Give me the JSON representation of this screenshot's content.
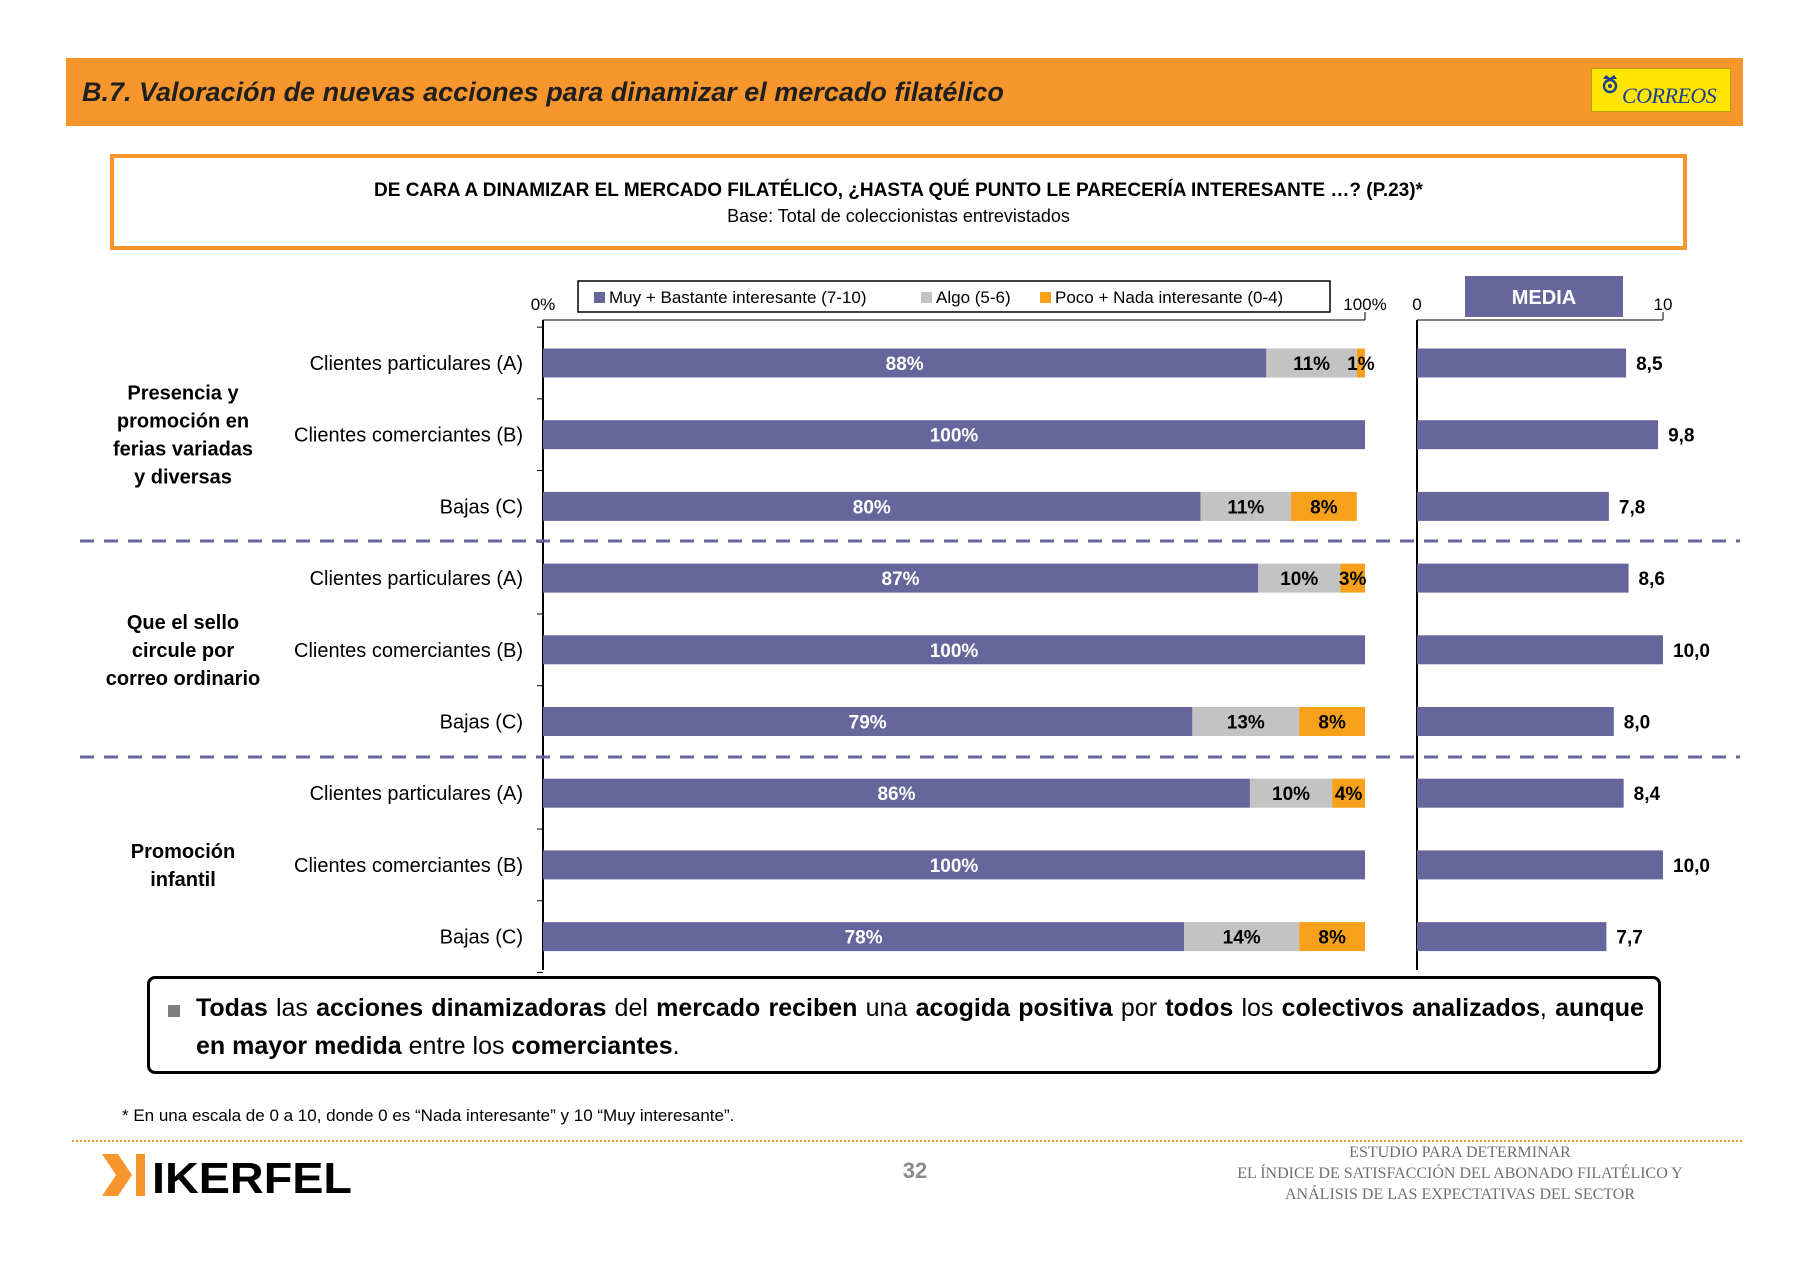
{
  "header": {
    "title": "B.7. Valoración de nuevas acciones para dinamizar el mercado filatélico",
    "logo_text": "CORREOS"
  },
  "question": {
    "title": "DE CARA A DINAMIZAR EL MERCADO FILATÉLICO, ¿HASTA QUÉ PUNTO LE PARECERÍA INTERESANTE …? (P.23)*",
    "base": "Base: Total de coleccionistas entrevistados"
  },
  "chart_data": {
    "type": "bar",
    "stacked": true,
    "orientation": "horizontal",
    "percent_axis": {
      "min_label": "0%",
      "max_label": "100%",
      "range": [
        0,
        100
      ]
    },
    "mean_axis": {
      "title": "MEDIA",
      "min_label": "0",
      "max_label": "10",
      "range": [
        0,
        10
      ]
    },
    "series": [
      {
        "name": "Muy + Bastante interesante (7-10)",
        "color": "#66659c"
      },
      {
        "name": "Algo (5-6)",
        "color": "#c3c3c3"
      },
      {
        "name": "Poco + Nada interesante (0-4)",
        "color": "#f7a11a"
      }
    ],
    "groups": [
      {
        "label": "Presencia y promoción en ferias variadas y diversas",
        "rows": [
          {
            "label": "Clientes particulares (A)",
            "values": [
              88,
              11,
              1
            ],
            "mean": 8.5,
            "mean_label": "8,5"
          },
          {
            "label": "Clientes comerciantes (B)",
            "values": [
              100,
              0,
              0
            ],
            "mean": 9.8,
            "mean_label": "9,8"
          },
          {
            "label": "Bajas (C)",
            "values": [
              80,
              11,
              8
            ],
            "mean": 7.8,
            "mean_label": "7,8"
          }
        ]
      },
      {
        "label": "Que el sello circule por correo ordinario",
        "rows": [
          {
            "label": "Clientes particulares (A)",
            "values": [
              87,
              10,
              3
            ],
            "mean": 8.6,
            "mean_label": "8,6"
          },
          {
            "label": "Clientes comerciantes (B)",
            "values": [
              100,
              0,
              0
            ],
            "mean": 10.0,
            "mean_label": "10,0"
          },
          {
            "label": "Bajas (C)",
            "values": [
              79,
              13,
              8
            ],
            "mean": 8.0,
            "mean_label": "8,0"
          }
        ]
      },
      {
        "label": "Promoción infantil",
        "rows": [
          {
            "label": "Clientes particulares (A)",
            "values": [
              86,
              10,
              4
            ],
            "mean": 8.4,
            "mean_label": "8,4"
          },
          {
            "label": "Clientes comerciantes (B)",
            "values": [
              100,
              0,
              0
            ],
            "mean": 10.0,
            "mean_label": "10,0"
          },
          {
            "label": "Bajas (C)",
            "values": [
              78,
              14,
              8
            ],
            "mean": 7.7,
            "mean_label": "7,7"
          }
        ]
      }
    ]
  },
  "summary": {
    "segments": [
      {
        "text": "Todas",
        "bold": true
      },
      {
        "text": " las ",
        "bold": false
      },
      {
        "text": "acciones dinamizadoras",
        "bold": true
      },
      {
        "text": " del ",
        "bold": false
      },
      {
        "text": "mercado reciben",
        "bold": true
      },
      {
        "text": " una ",
        "bold": false
      },
      {
        "text": "acogida positiva",
        "bold": true
      },
      {
        "text": " por ",
        "bold": false
      },
      {
        "text": "todos",
        "bold": true
      },
      {
        "text": " los ",
        "bold": false
      },
      {
        "text": "colectivos analizados",
        "bold": true
      },
      {
        "text": ", ",
        "bold": false
      },
      {
        "text": "aunque en mayor medida",
        "bold": true
      },
      {
        "text": " entre los ",
        "bold": false
      },
      {
        "text": "comerciantes",
        "bold": true
      },
      {
        "text": ".",
        "bold": false
      }
    ]
  },
  "footnote": "* En una escala de 0 a 10, donde  0 es “Nada interesante” y 10 “Muy interesante”.",
  "footer": {
    "brand": "IKERFEL",
    "page_number": "32",
    "study_lines": [
      "ESTUDIO PARA DETERMINAR",
      "EL ÍNDICE DE SATISFACCIÓN DEL ABONADO FILATÉLICO Y",
      "ANÁLISIS DE LAS EXPECTATIVAS DEL SECTOR"
    ]
  },
  "colors": {
    "accent_orange": "#f7962d",
    "bar_purple": "#66659c",
    "bar_grey": "#c3c3c3",
    "bar_orange": "#f7a11a"
  }
}
